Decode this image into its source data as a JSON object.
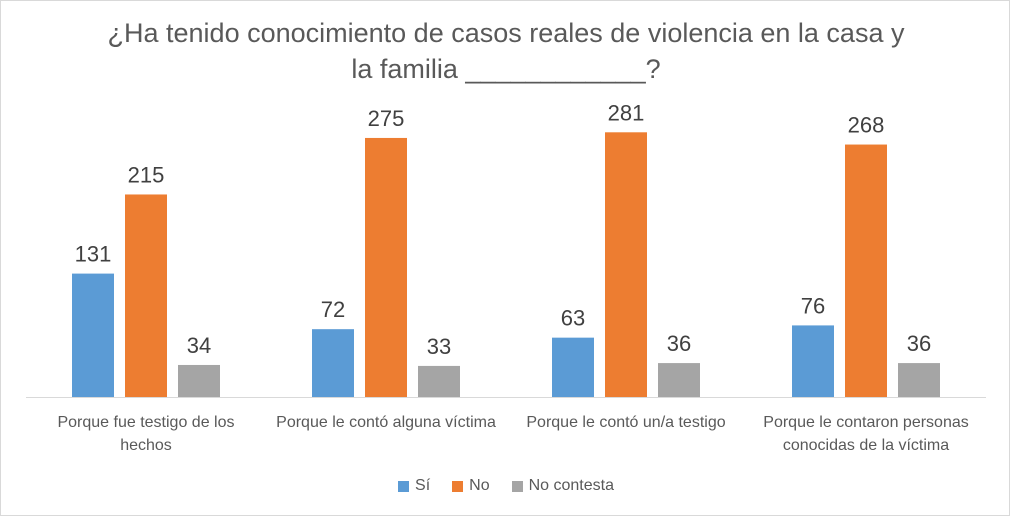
{
  "chart_data": {
    "type": "bar",
    "title_lines": [
      "¿Ha tenido conocimiento de casos reales de violencia en la casa y",
      "la familia ____________?"
    ],
    "categories": [
      [
        "Porque fue testigo de los",
        "hechos"
      ],
      [
        "Porque le contó alguna víctima"
      ],
      [
        "Porque le contó un/a testigo"
      ],
      [
        "Porque le contaron personas",
        "conocidas de la víctima"
      ]
    ],
    "series": [
      {
        "name": "Sí",
        "color": "#5b9bd5",
        "values": [
          131,
          72,
          63,
          76
        ]
      },
      {
        "name": "No",
        "color": "#ed7d31",
        "values": [
          215,
          275,
          281,
          268
        ]
      },
      {
        "name": "No contesta",
        "color": "#a5a5a5",
        "values": [
          34,
          33,
          36,
          36
        ]
      }
    ],
    "ylim": [
      0,
      300
    ],
    "grid": false,
    "legend_position": "bottom",
    "data_labels": true
  }
}
